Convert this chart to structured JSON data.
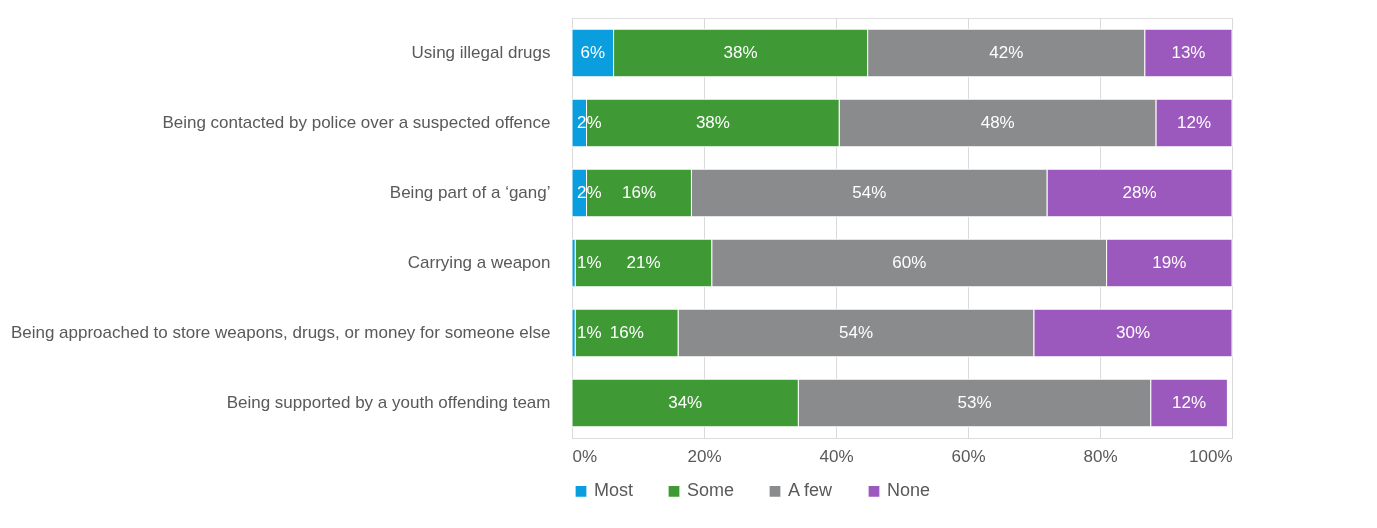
{
  "chart_data": {
    "type": "bar",
    "orientation": "horizontal",
    "stacked": true,
    "categories": [
      "Using illegal drugs",
      "Being contacted by police over a suspected offence",
      "Being part of a ‘gang’",
      "Carrying a weapon",
      "Being approached to store weapons, drugs, or money for someone else",
      "Being supported by a youth offending team"
    ],
    "series": [
      {
        "name": "Most",
        "color": "#0a9ede",
        "values": [
          6.3,
          2.2,
          2.2,
          0.5,
          0.5,
          null
        ],
        "value_labels": [
          "6%",
          "2%",
          "2%",
          "1%",
          "1%",
          null
        ]
      },
      {
        "name": "Some",
        "color": "#3f9a36",
        "values": [
          38.5,
          38.3,
          15.9,
          20.7,
          15.6,
          34.3
        ],
        "value_labels": [
          "38%",
          "38%",
          "16%",
          "21%",
          "16%",
          "34%"
        ]
      },
      {
        "name": "A few",
        "color": "#898b8d",
        "values": [
          42,
          48,
          53.9,
          59.8,
          53.9,
          53.4
        ],
        "value_labels": [
          "42%",
          "48%",
          "54%",
          "60%",
          "54%",
          "53%"
        ]
      },
      {
        "name": "None",
        "color": "#9b59bd",
        "values": [
          13.2,
          11.5,
          28,
          19,
          30,
          11.6
        ],
        "value_labels": [
          "13%",
          "12%",
          "28%",
          "19%",
          "30%",
          "12%"
        ]
      }
    ],
    "xlim": [
      0,
      100
    ],
    "xticks": [
      {
        "value": 0,
        "label": "0%"
      },
      {
        "value": 20,
        "label": "20%"
      },
      {
        "value": 40,
        "label": "40%"
      },
      {
        "value": 60,
        "label": "60%"
      },
      {
        "value": 80,
        "label": "80%"
      },
      {
        "value": 100,
        "label": "100%"
      }
    ],
    "grid": "x",
    "legend": "bottom"
  }
}
